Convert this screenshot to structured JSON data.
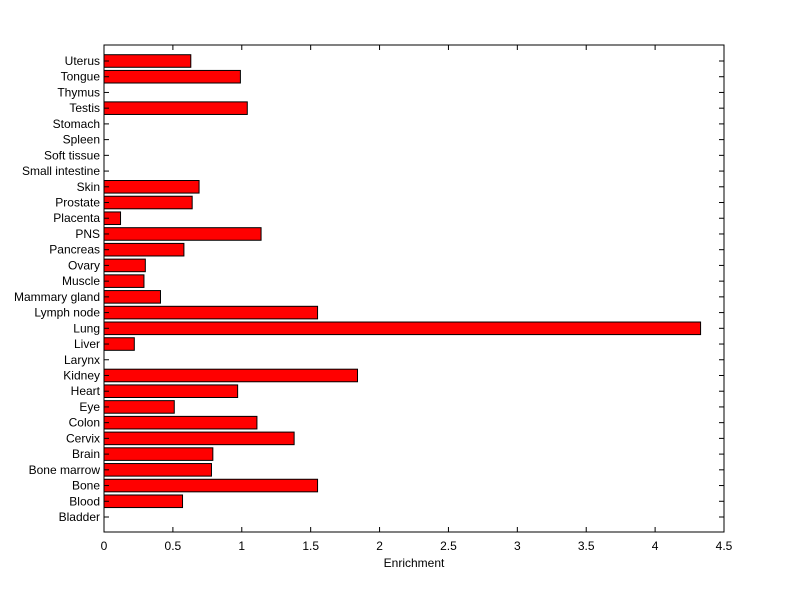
{
  "chart_data": {
    "type": "bar",
    "orientation": "horizontal",
    "title": "",
    "xlabel": "Enrichment",
    "ylabel": "",
    "xlim": [
      0,
      4.5
    ],
    "xticks": [
      0,
      0.5,
      1,
      1.5,
      2,
      2.5,
      3,
      3.5,
      4,
      4.5
    ],
    "xtick_labels": [
      "0",
      "0.5",
      "1",
      "1.5",
      "2",
      "2.5",
      "3",
      "3.5",
      "4",
      "4.5"
    ],
    "grid": false,
    "categories": [
      "Bladder",
      "Blood",
      "Bone",
      "Bone marrow",
      "Brain",
      "Cervix",
      "Colon",
      "Eye",
      "Heart",
      "Kidney",
      "Larynx",
      "Liver",
      "Lung",
      "Lymph node",
      "Mammary gland",
      "Muscle",
      "Ovary",
      "Pancreas",
      "PNS",
      "Placenta",
      "Prostate",
      "Skin",
      "Small intestine",
      "Soft tissue",
      "Spleen",
      "Stomach",
      "Testis",
      "Thymus",
      "Tongue",
      "Uterus"
    ],
    "values": [
      0,
      0.57,
      1.55,
      0.78,
      0.79,
      1.38,
      1.11,
      0.51,
      0.97,
      1.84,
      0,
      0.22,
      4.33,
      1.55,
      0.41,
      0.29,
      0.3,
      0.58,
      1.14,
      0.12,
      0.64,
      0.69,
      0,
      0,
      0,
      0,
      1.04,
      0,
      0.99,
      0.63
    ],
    "bar_color": "#ff0000",
    "edge_color": "#000000"
  }
}
